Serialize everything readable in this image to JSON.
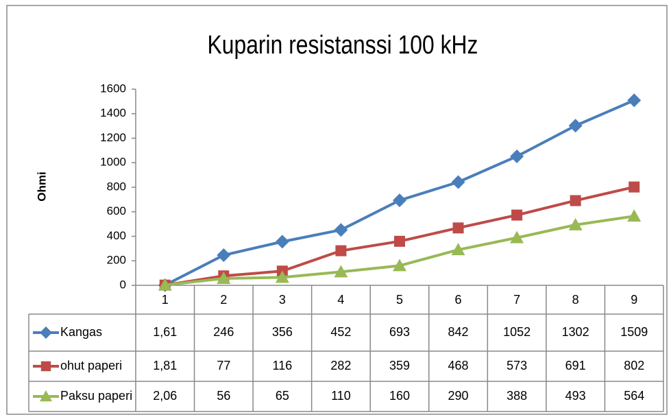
{
  "chart_data": {
    "type": "line",
    "title": "Kuparin resistanssi 100 kHz",
    "y_label": "Ohmi",
    "categories": [
      "1",
      "2",
      "3",
      "4",
      "5",
      "6",
      "7",
      "8",
      "9"
    ],
    "series": [
      {
        "name": "Kangas",
        "color": "#4a7ebb",
        "marker": "diamond",
        "values": [
          1.61,
          246,
          356,
          452,
          693,
          842,
          1052,
          1302,
          1509
        ],
        "value_labels": [
          "1,61",
          "246",
          "356",
          "452",
          "693",
          "842",
          "1052",
          "1302",
          "1509"
        ]
      },
      {
        "name": "ohut paperi",
        "color": "#be4b48",
        "marker": "square",
        "values": [
          1.81,
          77,
          116,
          282,
          359,
          468,
          573,
          691,
          802
        ],
        "value_labels": [
          "1,81",
          "77",
          "116",
          "282",
          "359",
          "468",
          "573",
          "691",
          "802"
        ]
      },
      {
        "name": "Paksu paperi",
        "color": "#98b954",
        "marker": "triangle",
        "values": [
          2.06,
          56,
          65,
          110,
          160,
          290,
          388,
          493,
          564
        ],
        "value_labels": [
          "2,06",
          "56",
          "65",
          "110",
          "160",
          "290",
          "388",
          "493",
          "564"
        ]
      }
    ],
    "ylim": [
      0,
      1600
    ],
    "yticks": [
      0,
      200,
      400,
      600,
      800,
      1000,
      1200,
      1400,
      1600
    ],
    "grid": false,
    "legend": "data-table"
  }
}
